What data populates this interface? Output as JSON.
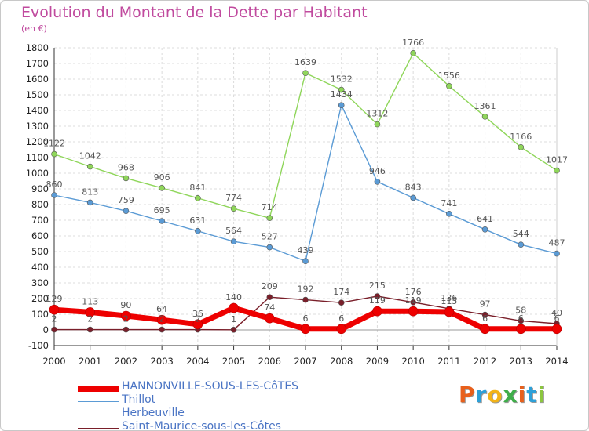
{
  "header": {
    "title": "Evolution du Montant de la Dette par Habitant",
    "unit": "(en €)"
  },
  "logo": {
    "text": "Proxiti",
    "colors": [
      "#e8601c",
      "#2ea0d8",
      "#f2b318",
      "#3fae4a",
      "#e8601c",
      "#2ea0d8",
      "#8cc63f"
    ]
  },
  "chart_data": {
    "type": "line",
    "title": "Evolution du Montant de la Dette par Habitant",
    "ylabel": "(en €)",
    "ylim": [
      -100,
      1800
    ],
    "y_ticks": [
      -100,
      0,
      100,
      200,
      300,
      400,
      500,
      600,
      700,
      800,
      900,
      1000,
      1100,
      1200,
      1300,
      1400,
      1500,
      1600,
      1700,
      1800
    ],
    "x": [
      2000,
      2001,
      2002,
      2003,
      2004,
      2005,
      2006,
      2007,
      2008,
      2009,
      2010,
      2011,
      2012,
      2013,
      2014
    ],
    "grid": true,
    "legend_position": "bottom-left",
    "series": [
      {
        "name": "Herbeuville",
        "color": "#8fd65a",
        "width": 1.4,
        "values": [
          1122,
          1042,
          968,
          906,
          841,
          774,
          714,
          1639,
          1532,
          1312,
          1766,
          1556,
          1361,
          1166,
          1017
        ]
      },
      {
        "name": "Thillot",
        "color": "#5b9bd5",
        "width": 1.4,
        "values": [
          860,
          813,
          759,
          695,
          631,
          564,
          527,
          439,
          1434,
          946,
          843,
          741,
          641,
          544,
          487
        ]
      },
      {
        "name": "Saint-Maurice-sous-les-Côtes",
        "color": "#7a1f2a",
        "width": 1.4,
        "values": [
          2,
          2,
          2,
          2,
          2,
          1,
          209,
          192,
          174,
          215,
          176,
          136,
          97,
          58,
          40
        ]
      },
      {
        "name": "HANNONVILLE-SOUS-LES-CôTES",
        "color": "#ee0000",
        "width": 7,
        "values": [
          129,
          113,
          90,
          64,
          36,
          140,
          74,
          6,
          6,
          119,
          119,
          115,
          6,
          6,
          6
        ]
      }
    ]
  }
}
